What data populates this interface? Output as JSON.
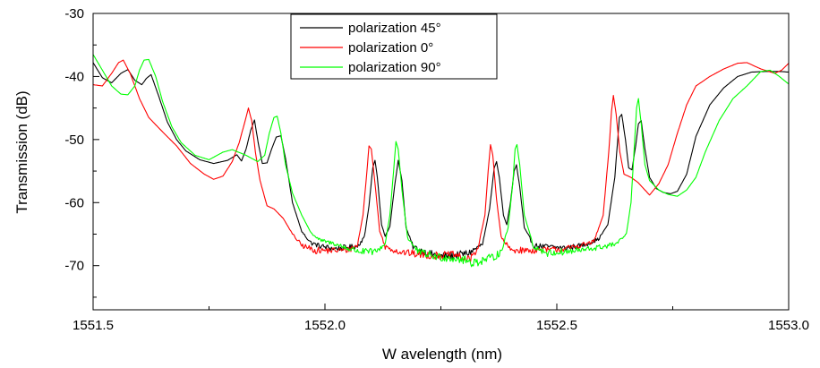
{
  "chart_data": {
    "type": "line",
    "title": "",
    "xlabel": "W avelength (nm)",
    "ylabel": "Transmission (dB)",
    "xlim": [
      1551.5,
      1553.0
    ],
    "ylim": [
      -77,
      -30
    ],
    "x_ticks": [
      {
        "value": 1551.5,
        "label": "1551.5"
      },
      {
        "value": 1552.0,
        "label": "1552.0"
      },
      {
        "value": 1552.5,
        "label": "1552.5"
      },
      {
        "value": 1553.0,
        "label": "1553.0"
      }
    ],
    "y_ticks": [
      {
        "value": -30,
        "label": "-30"
      },
      {
        "value": -40,
        "label": "-40"
      },
      {
        "value": -50,
        "label": "-50"
      },
      {
        "value": -60,
        "label": "-60"
      },
      {
        "value": -70,
        "label": "-70"
      }
    ],
    "grid": false,
    "legend_position": "top-center",
    "series": [
      {
        "name": "polarization 45°",
        "color": "#000000",
        "points": [
          [
            1551.5,
            -37.8
          ],
          [
            1551.52,
            -40.2
          ],
          [
            1551.54,
            -41.0
          ],
          [
            1551.56,
            -39.5
          ],
          [
            1551.575,
            -38.9
          ],
          [
            1551.59,
            -40.6
          ],
          [
            1551.605,
            -41.3
          ],
          [
            1551.615,
            -40.3
          ],
          [
            1551.625,
            -39.7
          ],
          [
            1551.64,
            -42.8
          ],
          [
            1551.66,
            -47.2
          ],
          [
            1551.68,
            -50.0
          ],
          [
            1551.7,
            -51.8
          ],
          [
            1551.73,
            -53.2
          ],
          [
            1551.76,
            -53.8
          ],
          [
            1551.79,
            -53.3
          ],
          [
            1551.81,
            -52.4
          ],
          [
            1551.82,
            -53.4
          ],
          [
            1551.83,
            -51.5
          ],
          [
            1551.84,
            -48.5
          ],
          [
            1551.848,
            -46.9
          ],
          [
            1551.856,
            -50.5
          ],
          [
            1551.865,
            -53.8
          ],
          [
            1551.875,
            -53.7
          ],
          [
            1551.885,
            -51.5
          ],
          [
            1551.895,
            -49.6
          ],
          [
            1551.905,
            -49.4
          ],
          [
            1551.915,
            -53.0
          ],
          [
            1551.93,
            -60.0
          ],
          [
            1551.95,
            -64.6
          ],
          [
            1551.97,
            -66.4
          ],
          [
            1551.99,
            -66.9
          ],
          [
            1552.02,
            -67.3
          ],
          [
            1552.05,
            -67.1
          ],
          [
            1552.07,
            -66.9
          ],
          [
            1552.085,
            -65.5
          ],
          [
            1552.095,
            -60.5
          ],
          [
            1552.103,
            -54.5
          ],
          [
            1552.108,
            -53.3
          ],
          [
            1552.113,
            -56.0
          ],
          [
            1552.122,
            -63.5
          ],
          [
            1552.13,
            -65.3
          ],
          [
            1552.14,
            -63.8
          ],
          [
            1552.15,
            -57.5
          ],
          [
            1552.158,
            -53.3
          ],
          [
            1552.166,
            -56.5
          ],
          [
            1552.175,
            -64.0
          ],
          [
            1552.19,
            -67.0
          ],
          [
            1552.22,
            -68.0
          ],
          [
            1552.25,
            -68.5
          ],
          [
            1552.28,
            -68.4
          ],
          [
            1552.31,
            -68.0
          ],
          [
            1552.34,
            -66.6
          ],
          [
            1552.355,
            -61.0
          ],
          [
            1552.365,
            -54.5
          ],
          [
            1552.37,
            -53.5
          ],
          [
            1552.376,
            -56.0
          ],
          [
            1552.385,
            -62.0
          ],
          [
            1552.392,
            -63.5
          ],
          [
            1552.4,
            -60.0
          ],
          [
            1552.408,
            -55.0
          ],
          [
            1552.413,
            -54.0
          ],
          [
            1552.42,
            -57.5
          ],
          [
            1552.43,
            -64.0
          ],
          [
            1552.45,
            -66.8
          ],
          [
            1552.48,
            -67.0
          ],
          [
            1552.52,
            -67.2
          ],
          [
            1552.56,
            -66.7
          ],
          [
            1552.59,
            -65.8
          ],
          [
            1552.61,
            -63.5
          ],
          [
            1552.625,
            -56.0
          ],
          [
            1552.635,
            -46.5
          ],
          [
            1552.64,
            -46.0
          ],
          [
            1552.648,
            -50.0
          ],
          [
            1552.655,
            -54.5
          ],
          [
            1552.662,
            -54.8
          ],
          [
            1552.67,
            -51.0
          ],
          [
            1552.676,
            -47.5
          ],
          [
            1552.682,
            -47.0
          ],
          [
            1552.69,
            -51.5
          ],
          [
            1552.7,
            -56.0
          ],
          [
            1552.715,
            -57.8
          ],
          [
            1552.73,
            -58.4
          ],
          [
            1552.745,
            -58.6
          ],
          [
            1552.76,
            -58.2
          ],
          [
            1552.78,
            -55.5
          ],
          [
            1552.8,
            -49.5
          ],
          [
            1552.83,
            -44.5
          ],
          [
            1552.86,
            -41.8
          ],
          [
            1552.89,
            -40.0
          ],
          [
            1552.92,
            -39.3
          ],
          [
            1552.95,
            -39.2
          ],
          [
            1552.98,
            -39.2
          ],
          [
            1553.0,
            -39.3
          ]
        ]
      },
      {
        "name": "polarization 0°",
        "color": "#ff0000",
        "points": [
          [
            1551.5,
            -41.3
          ],
          [
            1551.52,
            -41.5
          ],
          [
            1551.54,
            -39.5
          ],
          [
            1551.555,
            -37.8
          ],
          [
            1551.565,
            -37.4
          ],
          [
            1551.58,
            -39.5
          ],
          [
            1551.6,
            -43.5
          ],
          [
            1551.62,
            -46.5
          ],
          [
            1551.65,
            -48.8
          ],
          [
            1551.68,
            -51.0
          ],
          [
            1551.71,
            -53.8
          ],
          [
            1551.74,
            -55.5
          ],
          [
            1551.76,
            -56.3
          ],
          [
            1551.78,
            -55.8
          ],
          [
            1551.8,
            -53.5
          ],
          [
            1551.815,
            -50.5
          ],
          [
            1551.828,
            -47.0
          ],
          [
            1551.835,
            -45.0
          ],
          [
            1551.842,
            -47.0
          ],
          [
            1551.85,
            -52.0
          ],
          [
            1551.86,
            -56.5
          ],
          [
            1551.875,
            -60.5
          ],
          [
            1551.89,
            -61.0
          ],
          [
            1551.91,
            -62.5
          ],
          [
            1551.93,
            -65.0
          ],
          [
            1551.95,
            -66.8
          ],
          [
            1551.98,
            -67.6
          ],
          [
            1552.02,
            -67.6
          ],
          [
            1552.05,
            -67.5
          ],
          [
            1552.07,
            -66.8
          ],
          [
            1552.082,
            -62.0
          ],
          [
            1552.09,
            -55.5
          ],
          [
            1552.095,
            -51.0
          ],
          [
            1552.1,
            -51.5
          ],
          [
            1552.108,
            -57.0
          ],
          [
            1552.118,
            -64.5
          ],
          [
            1552.13,
            -67.0
          ],
          [
            1552.16,
            -67.8
          ],
          [
            1552.2,
            -68.2
          ],
          [
            1552.24,
            -68.4
          ],
          [
            1552.28,
            -68.3
          ],
          [
            1552.31,
            -69.2
          ],
          [
            1552.33,
            -67.2
          ],
          [
            1552.345,
            -62.0
          ],
          [
            1552.352,
            -55.0
          ],
          [
            1552.357,
            -50.8
          ],
          [
            1552.362,
            -52.5
          ],
          [
            1552.37,
            -59.5
          ],
          [
            1552.38,
            -65.5
          ],
          [
            1552.4,
            -67.5
          ],
          [
            1552.44,
            -67.6
          ],
          [
            1552.48,
            -67.5
          ],
          [
            1552.52,
            -67.3
          ],
          [
            1552.55,
            -66.8
          ],
          [
            1552.58,
            -66.2
          ],
          [
            1552.6,
            -62.0
          ],
          [
            1552.612,
            -52.0
          ],
          [
            1552.618,
            -45.5
          ],
          [
            1552.622,
            -43.0
          ],
          [
            1552.628,
            -46.0
          ],
          [
            1552.636,
            -52.0
          ],
          [
            1552.645,
            -55.5
          ],
          [
            1552.66,
            -56.0
          ],
          [
            1552.675,
            -56.8
          ],
          [
            1552.69,
            -58.0
          ],
          [
            1552.7,
            -58.8
          ],
          [
            1552.72,
            -57.0
          ],
          [
            1552.74,
            -54.0
          ],
          [
            1552.76,
            -49.0
          ],
          [
            1552.78,
            -44.5
          ],
          [
            1552.8,
            -41.5
          ],
          [
            1552.83,
            -40.0
          ],
          [
            1552.86,
            -38.8
          ],
          [
            1552.89,
            -37.9
          ],
          [
            1552.91,
            -37.8
          ],
          [
            1552.94,
            -38.8
          ],
          [
            1552.97,
            -39.5
          ],
          [
            1552.985,
            -39.0
          ],
          [
            1553.0,
            -37.9
          ]
        ]
      },
      {
        "name": "polarization 90°",
        "color": "#00ff00",
        "points": [
          [
            1551.5,
            -36.5
          ],
          [
            1551.52,
            -39.0
          ],
          [
            1551.54,
            -41.5
          ],
          [
            1551.56,
            -42.8
          ],
          [
            1551.575,
            -42.9
          ],
          [
            1551.59,
            -41.5
          ],
          [
            1551.6,
            -39.0
          ],
          [
            1551.61,
            -37.4
          ],
          [
            1551.62,
            -37.3
          ],
          [
            1551.635,
            -40.0
          ],
          [
            1551.65,
            -44.0
          ],
          [
            1551.67,
            -48.0
          ],
          [
            1551.69,
            -50.5
          ],
          [
            1551.72,
            -52.5
          ],
          [
            1551.75,
            -53.2
          ],
          [
            1551.78,
            -52.0
          ],
          [
            1551.8,
            -51.6
          ],
          [
            1551.83,
            -52.5
          ],
          [
            1551.855,
            -53.5
          ],
          [
            1551.87,
            -52.5
          ],
          [
            1551.88,
            -49.0
          ],
          [
            1551.89,
            -46.5
          ],
          [
            1551.897,
            -46.3
          ],
          [
            1551.905,
            -49.0
          ],
          [
            1551.915,
            -54.0
          ],
          [
            1551.93,
            -58.5
          ],
          [
            1551.95,
            -62.0
          ],
          [
            1551.97,
            -64.8
          ],
          [
            1551.99,
            -66.0
          ],
          [
            1552.02,
            -66.5
          ],
          [
            1552.05,
            -67.3
          ],
          [
            1552.08,
            -67.8
          ],
          [
            1552.11,
            -67.8
          ],
          [
            1552.13,
            -66.5
          ],
          [
            1552.14,
            -62.0
          ],
          [
            1552.148,
            -55.0
          ],
          [
            1552.153,
            -50.3
          ],
          [
            1552.158,
            -51.5
          ],
          [
            1552.166,
            -58.0
          ],
          [
            1552.178,
            -65.5
          ],
          [
            1552.2,
            -67.8
          ],
          [
            1552.24,
            -68.6
          ],
          [
            1552.28,
            -68.8
          ],
          [
            1552.32,
            -69.5
          ],
          [
            1552.36,
            -68.8
          ],
          [
            1552.38,
            -67.8
          ],
          [
            1552.395,
            -64.0
          ],
          [
            1552.405,
            -57.0
          ],
          [
            1552.41,
            -51.5
          ],
          [
            1552.414,
            -50.8
          ],
          [
            1552.42,
            -54.0
          ],
          [
            1552.43,
            -62.0
          ],
          [
            1552.45,
            -67.0
          ],
          [
            1552.48,
            -68.0
          ],
          [
            1552.52,
            -67.8
          ],
          [
            1552.56,
            -67.5
          ],
          [
            1552.6,
            -67.0
          ],
          [
            1552.63,
            -66.5
          ],
          [
            1552.65,
            -65.0
          ],
          [
            1552.66,
            -60.0
          ],
          [
            1552.668,
            -50.0
          ],
          [
            1552.672,
            -45.0
          ],
          [
            1552.676,
            -43.5
          ],
          [
            1552.682,
            -47.5
          ],
          [
            1552.69,
            -54.0
          ],
          [
            1552.7,
            -56.5
          ],
          [
            1552.72,
            -58.0
          ],
          [
            1552.74,
            -58.7
          ],
          [
            1552.76,
            -59.0
          ],
          [
            1552.78,
            -58.0
          ],
          [
            1552.8,
            -56.0
          ],
          [
            1552.82,
            -52.0
          ],
          [
            1552.85,
            -47.0
          ],
          [
            1552.88,
            -43.5
          ],
          [
            1552.91,
            -41.5
          ],
          [
            1552.94,
            -39.2
          ],
          [
            1552.96,
            -39.0
          ],
          [
            1552.98,
            -40.0
          ],
          [
            1553.0,
            -41.2
          ]
        ]
      }
    ]
  }
}
